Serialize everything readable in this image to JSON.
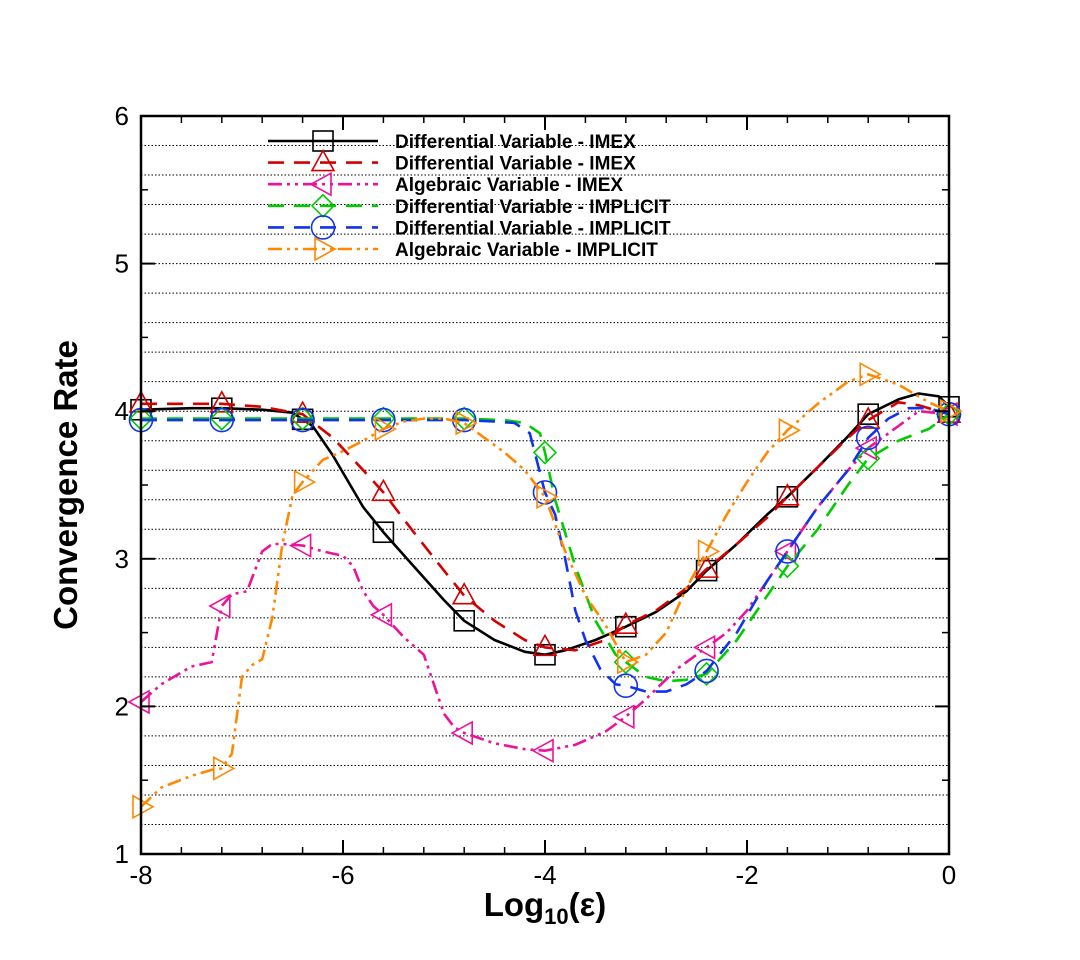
{
  "chart_data": {
    "type": "line",
    "xlabel_main": "Log",
    "xlabel_sub": "10",
    "xlabel_tail": "(ε)",
    "ylabel": "Convergence Rate",
    "xlim": [
      -8,
      0
    ],
    "ylim": [
      1,
      6
    ],
    "x_ticks": [
      -8,
      -6,
      -4,
      -2,
      0
    ],
    "y_ticks": [
      1,
      2,
      3,
      4,
      5,
      6
    ],
    "x_tick_labels": [
      "-8",
      "-6",
      "-4",
      "-2",
      "0"
    ],
    "y_tick_labels": [
      "1",
      "2",
      "3",
      "4",
      "5",
      "6"
    ],
    "y_minor_grid_step": 0.2,
    "grid": "horizontal dotted",
    "legend_position": "top-center",
    "series": [
      {
        "name": "Differential Variable - IMEX",
        "color": "#000000",
        "dash": "solid",
        "marker": "square",
        "marker_color": "#000000",
        "marker_x": [
          -8,
          -7.2,
          -6.4,
          -5.6,
          -4.8,
          -4.0,
          -3.2,
          -2.4,
          -1.6,
          -0.8,
          0
        ],
        "x": [
          -8,
          -7.5,
          -7.2,
          -6.8,
          -6.5,
          -6.3,
          -6.1,
          -5.8,
          -5.6,
          -5.3,
          -5.0,
          -4.8,
          -4.5,
          -4.2,
          -4.0,
          -3.8,
          -3.5,
          -3.2,
          -2.9,
          -2.6,
          -2.4,
          -2.1,
          -1.8,
          -1.6,
          -1.3,
          -1.0,
          -0.8,
          -0.5,
          -0.3,
          -0.1,
          0
        ],
        "y": [
          4.01,
          4.02,
          4.02,
          4.01,
          3.99,
          3.9,
          3.7,
          3.35,
          3.18,
          2.95,
          2.72,
          2.58,
          2.45,
          2.37,
          2.35,
          2.38,
          2.45,
          2.54,
          2.64,
          2.78,
          2.92,
          3.1,
          3.3,
          3.42,
          3.62,
          3.83,
          3.98,
          4.08,
          4.12,
          4.1,
          4.03
        ]
      },
      {
        "name": "Differential Variable - IMEX",
        "color": "#d40000",
        "dash": "dashed",
        "marker": "triangle-up",
        "marker_color": "#d40000",
        "marker_x": [
          -8,
          -7.2,
          -6.4,
          -5.6,
          -4.8,
          -4.0,
          -3.2,
          -2.4,
          -1.6,
          -0.8,
          0
        ],
        "x": [
          -8,
          -7.5,
          -7.2,
          -6.8,
          -6.4,
          -6.1,
          -5.8,
          -5.6,
          -5.3,
          -5.0,
          -4.8,
          -4.5,
          -4.2,
          -4.0,
          -3.7,
          -3.4,
          -3.2,
          -2.9,
          -2.6,
          -2.4,
          -2.1,
          -1.8,
          -1.6,
          -1.3,
          -1.0,
          -0.8,
          -0.5,
          -0.3,
          0
        ],
        "y": [
          4.05,
          4.05,
          4.05,
          4.03,
          3.98,
          3.82,
          3.6,
          3.45,
          3.18,
          2.92,
          2.75,
          2.58,
          2.45,
          2.4,
          2.38,
          2.45,
          2.55,
          2.65,
          2.8,
          2.93,
          3.1,
          3.28,
          3.42,
          3.62,
          3.82,
          3.94,
          4.06,
          4.04,
          3.98
        ]
      },
      {
        "name": "Algebraic Variable - IMEX",
        "color": "#ee1199",
        "dash": "dash-dot-dot",
        "marker": "triangle-left",
        "marker_color": "#ee1199",
        "marker_x": [
          -8,
          -7.2,
          -6.4,
          -5.6,
          -4.8,
          -4.0,
          -3.2,
          -2.4,
          -1.6,
          -0.8,
          0
        ],
        "x": [
          -8,
          -7.8,
          -7.5,
          -7.3,
          -7.2,
          -7.1,
          -6.95,
          -6.8,
          -6.7,
          -6.6,
          -6.4,
          -6.2,
          -6.0,
          -5.9,
          -5.8,
          -5.7,
          -5.6,
          -5.4,
          -5.2,
          -5.1,
          -5.0,
          -4.9,
          -4.8,
          -4.5,
          -4.2,
          -4.0,
          -3.7,
          -3.4,
          -3.2,
          -3.0,
          -2.7,
          -2.4,
          -2.2,
          -2.0,
          -1.8,
          -1.6,
          -1.3,
          -1.0,
          -0.8,
          -0.5,
          -0.3,
          0
        ],
        "y": [
          2.03,
          2.15,
          2.27,
          2.3,
          2.68,
          2.76,
          2.78,
          3.05,
          3.1,
          3.1,
          3.09,
          3.05,
          3.02,
          2.95,
          2.78,
          2.68,
          2.62,
          2.47,
          2.35,
          2.15,
          1.95,
          1.86,
          1.82,
          1.75,
          1.71,
          1.7,
          1.74,
          1.83,
          1.93,
          2.05,
          2.25,
          2.4,
          2.5,
          2.65,
          2.85,
          3.05,
          3.35,
          3.6,
          3.75,
          3.9,
          4.0,
          3.98
        ]
      },
      {
        "name": "Differential Variable - IMPLICIT",
        "color": "#00cc00",
        "dash": "dashed",
        "marker": "diamond",
        "marker_color": "#00cc00",
        "marker_x": [
          -8,
          -7.2,
          -6.4,
          -5.6,
          -4.8,
          -4.0,
          -3.2,
          -2.4,
          -1.6,
          -0.8,
          0
        ],
        "x": [
          -8,
          -7.2,
          -6.4,
          -5.6,
          -4.8,
          -4.4,
          -4.2,
          -4.05,
          -4.0,
          -3.9,
          -3.7,
          -3.5,
          -3.3,
          -3.2,
          -3.0,
          -2.8,
          -2.6,
          -2.4,
          -2.1,
          -1.8,
          -1.6,
          -1.3,
          -1.0,
          -0.8,
          -0.5,
          -0.2,
          0
        ],
        "y": [
          3.95,
          3.95,
          3.95,
          3.95,
          3.95,
          3.94,
          3.92,
          3.85,
          3.72,
          3.4,
          2.95,
          2.58,
          2.35,
          2.3,
          2.2,
          2.17,
          2.18,
          2.22,
          2.45,
          2.75,
          2.95,
          3.2,
          3.5,
          3.68,
          3.8,
          3.88,
          3.98
        ]
      },
      {
        "name": "Differential Variable - IMPLICIT",
        "color": "#1133ee",
        "dash": "dashed",
        "marker": "circle",
        "marker_color": "#1133ee",
        "marker_x": [
          -8,
          -7.2,
          -6.4,
          -5.6,
          -4.8,
          -4.0,
          -3.2,
          -2.4,
          -1.6,
          -0.8,
          0
        ],
        "x": [
          -8,
          -7.2,
          -6.4,
          -5.6,
          -4.8,
          -4.5,
          -4.3,
          -4.15,
          -4.0,
          -3.9,
          -3.8,
          -3.7,
          -3.6,
          -3.45,
          -3.3,
          -3.2,
          -3.0,
          -2.8,
          -2.6,
          -2.4,
          -2.1,
          -1.8,
          -1.6,
          -1.3,
          -1.0,
          -0.8,
          -0.6,
          -0.4,
          -0.2,
          0
        ],
        "y": [
          3.94,
          3.94,
          3.94,
          3.94,
          3.94,
          3.93,
          3.92,
          3.85,
          3.45,
          3.3,
          3.0,
          2.65,
          2.45,
          2.25,
          2.15,
          2.14,
          2.1,
          2.1,
          2.15,
          2.24,
          2.5,
          2.85,
          3.05,
          3.35,
          3.6,
          3.82,
          3.95,
          4.02,
          4.02,
          3.98
        ]
      },
      {
        "name": "Algebraic Variable - IMPLICIT",
        "color": "#ff8800",
        "dash": "dash-dot-dot",
        "marker": "triangle-right",
        "marker_color": "#ff8800",
        "marker_x": [
          -8,
          -7.2,
          -6.4,
          -5.6,
          -4.8,
          -4.0,
          -3.2,
          -2.4,
          -1.6,
          -0.8,
          0
        ],
        "x": [
          -8,
          -7.8,
          -7.5,
          -7.3,
          -7.2,
          -7.1,
          -7.0,
          -6.9,
          -6.8,
          -6.7,
          -6.6,
          -6.5,
          -6.4,
          -6.2,
          -6.0,
          -5.8,
          -5.6,
          -5.4,
          -5.2,
          -5.0,
          -4.8,
          -4.6,
          -4.4,
          -4.2,
          -4.0,
          -3.8,
          -3.6,
          -3.4,
          -3.2,
          -3.0,
          -2.8,
          -2.6,
          -2.4,
          -2.2,
          -2.0,
          -1.8,
          -1.6,
          -1.3,
          -1.0,
          -0.8,
          -0.5,
          -0.2,
          0
        ],
        "y": [
          1.32,
          1.45,
          1.53,
          1.57,
          1.58,
          1.68,
          2.2,
          2.28,
          2.32,
          2.6,
          3.1,
          3.43,
          3.52,
          3.67,
          3.73,
          3.8,
          3.88,
          3.93,
          3.95,
          3.95,
          3.92,
          3.82,
          3.72,
          3.6,
          3.42,
          3.05,
          2.75,
          2.55,
          2.3,
          2.35,
          2.5,
          2.8,
          3.05,
          3.3,
          3.52,
          3.72,
          3.87,
          4.05,
          4.2,
          4.25,
          4.18,
          4.06,
          4.0
        ]
      }
    ]
  }
}
